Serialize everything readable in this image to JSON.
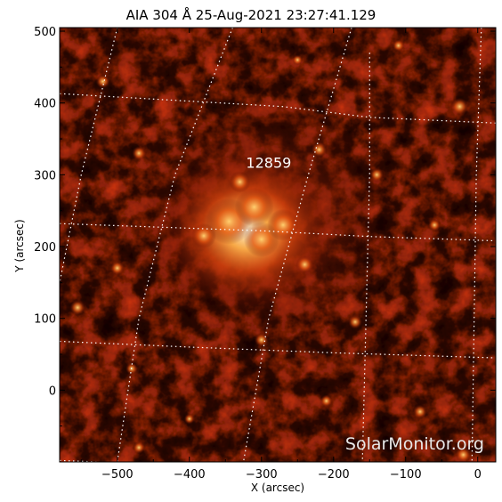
{
  "title": "AIA 304 Å 25-Aug-2021 23:27:41.129",
  "xlabel": "X (arcsec)",
  "ylabel": "Y (arcsec)",
  "x_ticks": [
    {
      "value": -500,
      "label": "−500"
    },
    {
      "value": -400,
      "label": "−400"
    },
    {
      "value": -300,
      "label": "−300"
    },
    {
      "value": -200,
      "label": "−200"
    },
    {
      "value": -100,
      "label": "−100"
    },
    {
      "value": 0,
      "label": "0"
    }
  ],
  "y_ticks": [
    {
      "value": 500,
      "label": "500"
    },
    {
      "value": 400,
      "label": "400"
    },
    {
      "value": 300,
      "label": "300"
    },
    {
      "value": 200,
      "label": "200"
    },
    {
      "value": 100,
      "label": "100"
    },
    {
      "value": 0,
      "label": "0"
    }
  ],
  "xlim": [
    -580,
    25
  ],
  "ylim": [
    -100,
    505
  ],
  "active_region": {
    "label": "12859",
    "x": -290,
    "y": 310
  },
  "watermark": "SolarMonitor.org",
  "colors": {
    "background": "#ffffff",
    "image_dark": "#120000",
    "image_hot": "#ff6a10",
    "image_bright": "#fff6d8",
    "grid": "#ffffff"
  }
}
